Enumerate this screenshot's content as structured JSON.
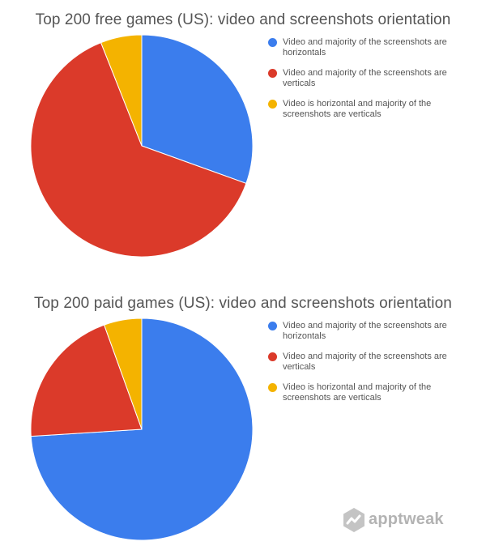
{
  "chart_data": [
    {
      "type": "pie",
      "title": "Top 200 free games (US): video and screenshots orientation",
      "legend_position": "right",
      "slices": [
        {
          "label": "Video and majority of the screenshots are horizontals",
          "value": 30.5,
          "color": "#3b7ded"
        },
        {
          "label": "Video and majority of the screenshots are verticals",
          "value": 63.5,
          "color": "#db3a2a"
        },
        {
          "label": "Video is horizontal and majority of the screenshots are verticals",
          "value": 6.0,
          "color": "#f4b300"
        }
      ]
    },
    {
      "type": "pie",
      "title": "Top 200 paid games (US): video and screenshots orientation",
      "legend_position": "right",
      "slices": [
        {
          "label": "Video and majority of the screenshots are horizontals",
          "value": 74.0,
          "color": "#3b7ded"
        },
        {
          "label": "Video and majority of the screenshots are verticals",
          "value": 20.5,
          "color": "#db3a2a"
        },
        {
          "label": "Video is horizontal and majority of the screenshots are verticals",
          "value": 5.5,
          "color": "#f4b300"
        }
      ]
    }
  ],
  "branding": {
    "name": "apptweak",
    "icon": "apptweak-logo-icon",
    "color": "#b3b3b3"
  }
}
